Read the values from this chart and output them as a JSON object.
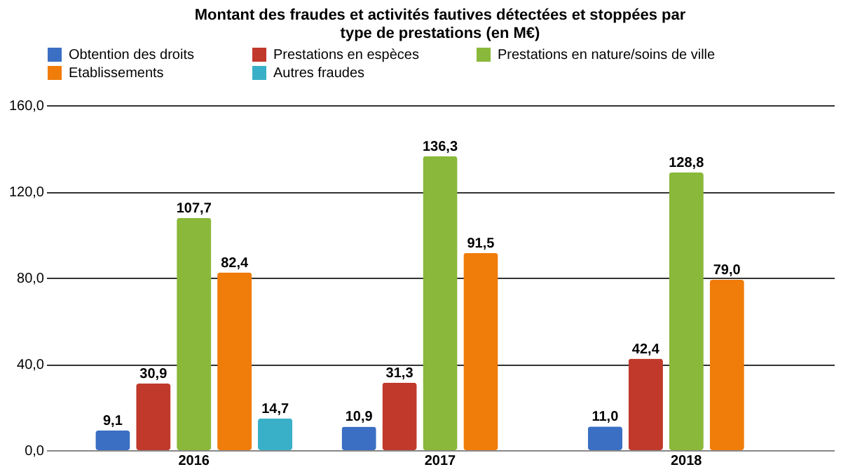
{
  "chart_data": {
    "type": "bar",
    "title": "Montant des fraudes et activités fautives détectées et stoppées par type de prestations (en M€)",
    "categories": [
      "2016",
      "2017",
      "2018"
    ],
    "series": [
      {
        "name": "Obtention des droits",
        "color": "#3a6fc4",
        "values": [
          9.1,
          10.9,
          11.0
        ],
        "value_labels": [
          "9,1",
          "10,9",
          "11,0"
        ]
      },
      {
        "name": "Prestations en espèces",
        "color": "#c0392b",
        "values": [
          30.9,
          31.3,
          42.4
        ],
        "value_labels": [
          "30,9",
          "31,3",
          "42,4"
        ]
      },
      {
        "name": "Prestations en nature/soins de ville",
        "color": "#8ab83a",
        "values": [
          107.7,
          136.3,
          128.8
        ],
        "value_labels": [
          "107,7",
          "136,3",
          "128,8"
        ]
      },
      {
        "name": "Etablissements",
        "color": "#f07c0a",
        "values": [
          82.4,
          91.5,
          79.0
        ],
        "value_labels": [
          "82,4",
          "91,5",
          "79,0"
        ]
      },
      {
        "name": "Autres fraudes",
        "color": "#3ab0c8",
        "values": [
          14.7,
          null,
          null
        ],
        "value_labels": [
          "14,7",
          null,
          null
        ]
      }
    ],
    "ylim": [
      0,
      160
    ],
    "yticks": [
      {
        "value": 0,
        "label": "0,0"
      },
      {
        "value": 40,
        "label": "40,0"
      },
      {
        "value": 80,
        "label": "80,0"
      },
      {
        "value": 120,
        "label": "120,0"
      },
      {
        "value": 160,
        "label": "160,0"
      }
    ],
    "grid": "y",
    "legend": "top"
  }
}
